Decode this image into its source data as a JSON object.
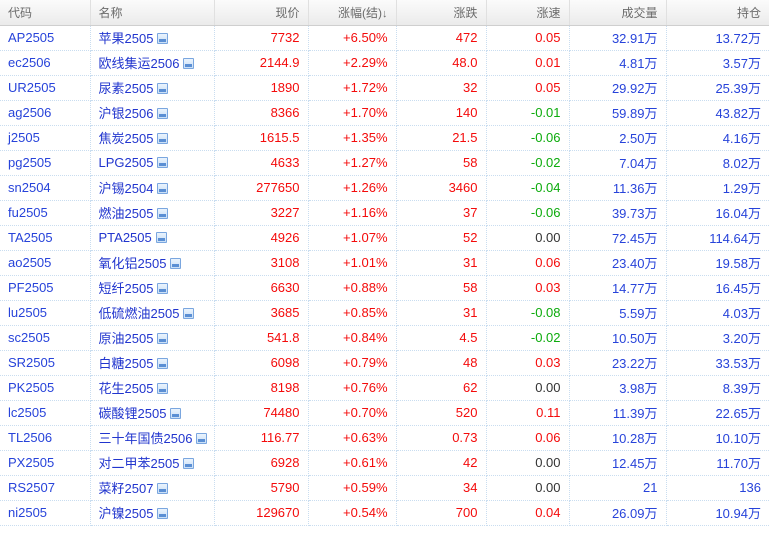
{
  "colors": {
    "up": "#f40b0b",
    "down": "#0cab0c",
    "link": "#2743da",
    "name": "#2135ce",
    "flat": "#333333"
  },
  "table": {
    "sort_indicator": "↓",
    "columns": [
      {
        "key": "code",
        "label": "代码",
        "align": "left",
        "sorted": false
      },
      {
        "key": "name",
        "label": "名称",
        "align": "left",
        "sorted": false
      },
      {
        "key": "price",
        "label": "现价",
        "align": "right",
        "sorted": false
      },
      {
        "key": "change_pct",
        "label": "涨幅(结)",
        "align": "right",
        "sorted": true
      },
      {
        "key": "change",
        "label": "涨跌",
        "align": "right",
        "sorted": false
      },
      {
        "key": "speed",
        "label": "涨速",
        "align": "right",
        "sorted": false
      },
      {
        "key": "volume",
        "label": "成交量",
        "align": "right",
        "sorted": false
      },
      {
        "key": "open_interest",
        "label": "持仓",
        "align": "right",
        "sorted": false
      }
    ],
    "rows": [
      {
        "code": "AP2505",
        "name": "苹果2505",
        "price": "7732",
        "change_pct": "+6.50%",
        "change": "472",
        "speed": "0.05",
        "volume": "32.91万",
        "open_interest": "13.72万"
      },
      {
        "code": "ec2506",
        "name": "欧线集运2506",
        "price": "2144.9",
        "change_pct": "+2.29%",
        "change": "48.0",
        "speed": "0.01",
        "volume": "4.81万",
        "open_interest": "3.57万"
      },
      {
        "code": "UR2505",
        "name": "尿素2505",
        "price": "1890",
        "change_pct": "+1.72%",
        "change": "32",
        "speed": "0.05",
        "volume": "29.92万",
        "open_interest": "25.39万"
      },
      {
        "code": "ag2506",
        "name": "沪银2506",
        "price": "8366",
        "change_pct": "+1.70%",
        "change": "140",
        "speed": "-0.01",
        "volume": "59.89万",
        "open_interest": "43.82万"
      },
      {
        "code": "j2505",
        "name": "焦炭2505",
        "price": "1615.5",
        "change_pct": "+1.35%",
        "change": "21.5",
        "speed": "-0.06",
        "volume": "2.50万",
        "open_interest": "4.16万"
      },
      {
        "code": "pg2505",
        "name": "LPG2505",
        "price": "4633",
        "change_pct": "+1.27%",
        "change": "58",
        "speed": "-0.02",
        "volume": "7.04万",
        "open_interest": "8.02万"
      },
      {
        "code": "sn2504",
        "name": "沪锡2504",
        "price": "277650",
        "change_pct": "+1.26%",
        "change": "3460",
        "speed": "-0.04",
        "volume": "11.36万",
        "open_interest": "1.29万"
      },
      {
        "code": "fu2505",
        "name": "燃油2505",
        "price": "3227",
        "change_pct": "+1.16%",
        "change": "37",
        "speed": "-0.06",
        "volume": "39.73万",
        "open_interest": "16.04万"
      },
      {
        "code": "TA2505",
        "name": "PTA2505",
        "price": "4926",
        "change_pct": "+1.07%",
        "change": "52",
        "speed": "0.00",
        "volume": "72.45万",
        "open_interest": "114.64万"
      },
      {
        "code": "ao2505",
        "name": "氧化铝2505",
        "price": "3108",
        "change_pct": "+1.01%",
        "change": "31",
        "speed": "0.06",
        "volume": "23.40万",
        "open_interest": "19.58万"
      },
      {
        "code": "PF2505",
        "name": "短纤2505",
        "price": "6630",
        "change_pct": "+0.88%",
        "change": "58",
        "speed": "0.03",
        "volume": "14.77万",
        "open_interest": "16.45万"
      },
      {
        "code": "lu2505",
        "name": "低硫燃油2505",
        "price": "3685",
        "change_pct": "+0.85%",
        "change": "31",
        "speed": "-0.08",
        "volume": "5.59万",
        "open_interest": "4.03万"
      },
      {
        "code": "sc2505",
        "name": "原油2505",
        "price": "541.8",
        "change_pct": "+0.84%",
        "change": "4.5",
        "speed": "-0.02",
        "volume": "10.50万",
        "open_interest": "3.20万"
      },
      {
        "code": "SR2505",
        "name": "白糖2505",
        "price": "6098",
        "change_pct": "+0.79%",
        "change": "48",
        "speed": "0.03",
        "volume": "23.22万",
        "open_interest": "33.53万"
      },
      {
        "code": "PK2505",
        "name": "花生2505",
        "price": "8198",
        "change_pct": "+0.76%",
        "change": "62",
        "speed": "0.00",
        "volume": "3.98万",
        "open_interest": "8.39万"
      },
      {
        "code": "lc2505",
        "name": "碳酸锂2505",
        "price": "74480",
        "change_pct": "+0.70%",
        "change": "520",
        "speed": "0.11",
        "volume": "11.39万",
        "open_interest": "22.65万"
      },
      {
        "code": "TL2506",
        "name": "三十年国债2506",
        "price": "116.77",
        "change_pct": "+0.63%",
        "change": "0.73",
        "speed": "0.06",
        "volume": "10.28万",
        "open_interest": "10.10万"
      },
      {
        "code": "PX2505",
        "name": "对二甲苯2505",
        "price": "6928",
        "change_pct": "+0.61%",
        "change": "42",
        "speed": "0.00",
        "volume": "12.45万",
        "open_interest": "11.70万"
      },
      {
        "code": "RS2507",
        "name": "菜籽2507",
        "price": "5790",
        "change_pct": "+0.59%",
        "change": "34",
        "speed": "0.00",
        "volume": "21",
        "open_interest": "136"
      },
      {
        "code": "ni2505",
        "name": "沪镍2505",
        "price": "129670",
        "change_pct": "+0.54%",
        "change": "700",
        "speed": "0.04",
        "volume": "26.09万",
        "open_interest": "10.94万"
      }
    ]
  }
}
